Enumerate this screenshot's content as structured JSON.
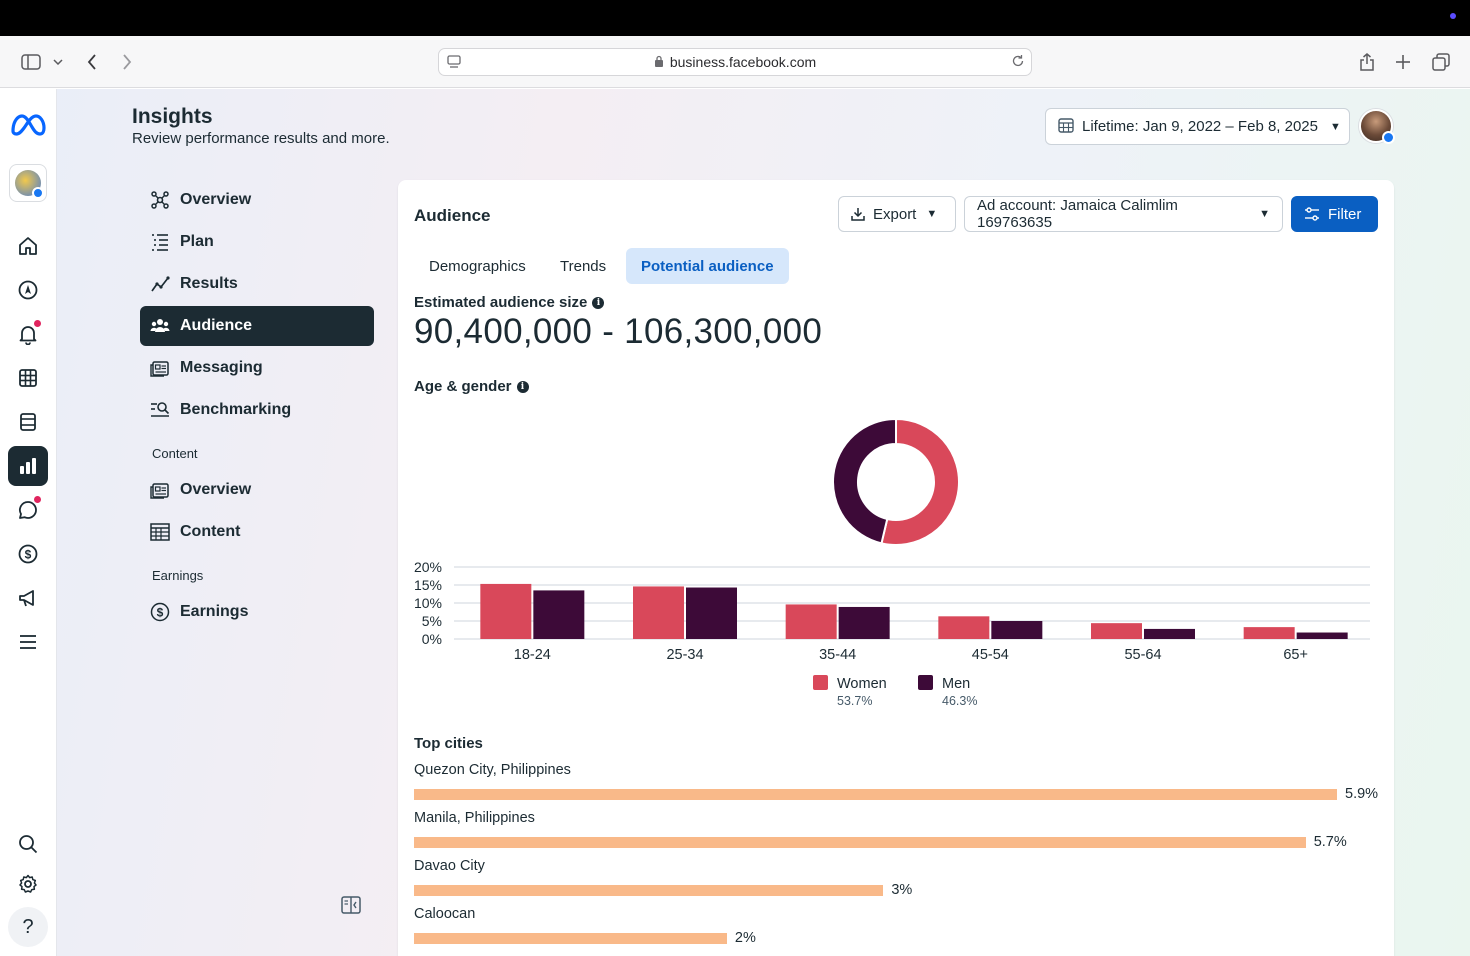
{
  "browser": {
    "url": "business.facebook.com"
  },
  "header": {
    "title": "Insights",
    "subtitle": "Review performance results and more.",
    "date_range": "Lifetime: Jan 9, 2022 – Feb 8, 2025"
  },
  "nav": {
    "items": [
      {
        "label": "Overview",
        "icon": "overview-icon"
      },
      {
        "label": "Plan",
        "icon": "plan-icon"
      },
      {
        "label": "Results",
        "icon": "results-icon"
      },
      {
        "label": "Audience",
        "icon": "audience-icon",
        "active": true
      },
      {
        "label": "Messaging",
        "icon": "messaging-icon"
      },
      {
        "label": "Benchmarking",
        "icon": "benchmarking-icon"
      }
    ],
    "content_section": "Content",
    "content_items": [
      {
        "label": "Overview",
        "icon": "content-overview-icon"
      },
      {
        "label": "Content",
        "icon": "content-table-icon"
      }
    ],
    "earnings_section": "Earnings",
    "earnings_items": [
      {
        "label": "Earnings",
        "icon": "dollar-icon"
      }
    ]
  },
  "card": {
    "title": "Audience",
    "export_label": "Export",
    "ad_account_label": "Ad account: Jamaica Calimlim 169763635",
    "filter_label": "Filter",
    "tabs": [
      "Demographics",
      "Trends",
      "Potential audience"
    ],
    "active_tab": "Potential audience",
    "estimated_label": "Estimated audience size",
    "estimated_value": "90,400,000 - 106,300,000",
    "age_gender_label": "Age & gender",
    "top_cities_label": "Top cities"
  },
  "colors": {
    "women": "#d9485a",
    "men": "#3d0a38",
    "city_bar": "#f9b989",
    "primary": "#0a5fc2"
  },
  "chart_data": {
    "type": "bar",
    "title": "Age & gender",
    "categories": [
      "18-24",
      "25-34",
      "35-44",
      "45-54",
      "55-64",
      "65+"
    ],
    "series": [
      {
        "name": "Women",
        "share": "53.7%",
        "values": [
          15.3,
          14.6,
          9.6,
          6.3,
          4.4,
          3.3
        ]
      },
      {
        "name": "Men",
        "share": "46.3%",
        "values": [
          13.5,
          14.3,
          8.9,
          5.0,
          2.8,
          1.8
        ]
      }
    ],
    "yticks": [
      "20%",
      "15%",
      "10%",
      "5%",
      "0%"
    ],
    "ylim": [
      0,
      20
    ],
    "donut": [
      {
        "name": "Women",
        "value": 53.7
      },
      {
        "name": "Men",
        "value": 46.3
      }
    ],
    "legend": "bottom-center"
  },
  "top_cities": [
    {
      "name": "Quezon City, Philippines",
      "value": 5.9,
      "label": "5.9%"
    },
    {
      "name": "Manila, Philippines",
      "value": 5.7,
      "label": "5.7%"
    },
    {
      "name": "Davao City",
      "value": 3.0,
      "label": "3%"
    },
    {
      "name": "Caloocan",
      "value": 2.0,
      "label": "2%"
    }
  ]
}
